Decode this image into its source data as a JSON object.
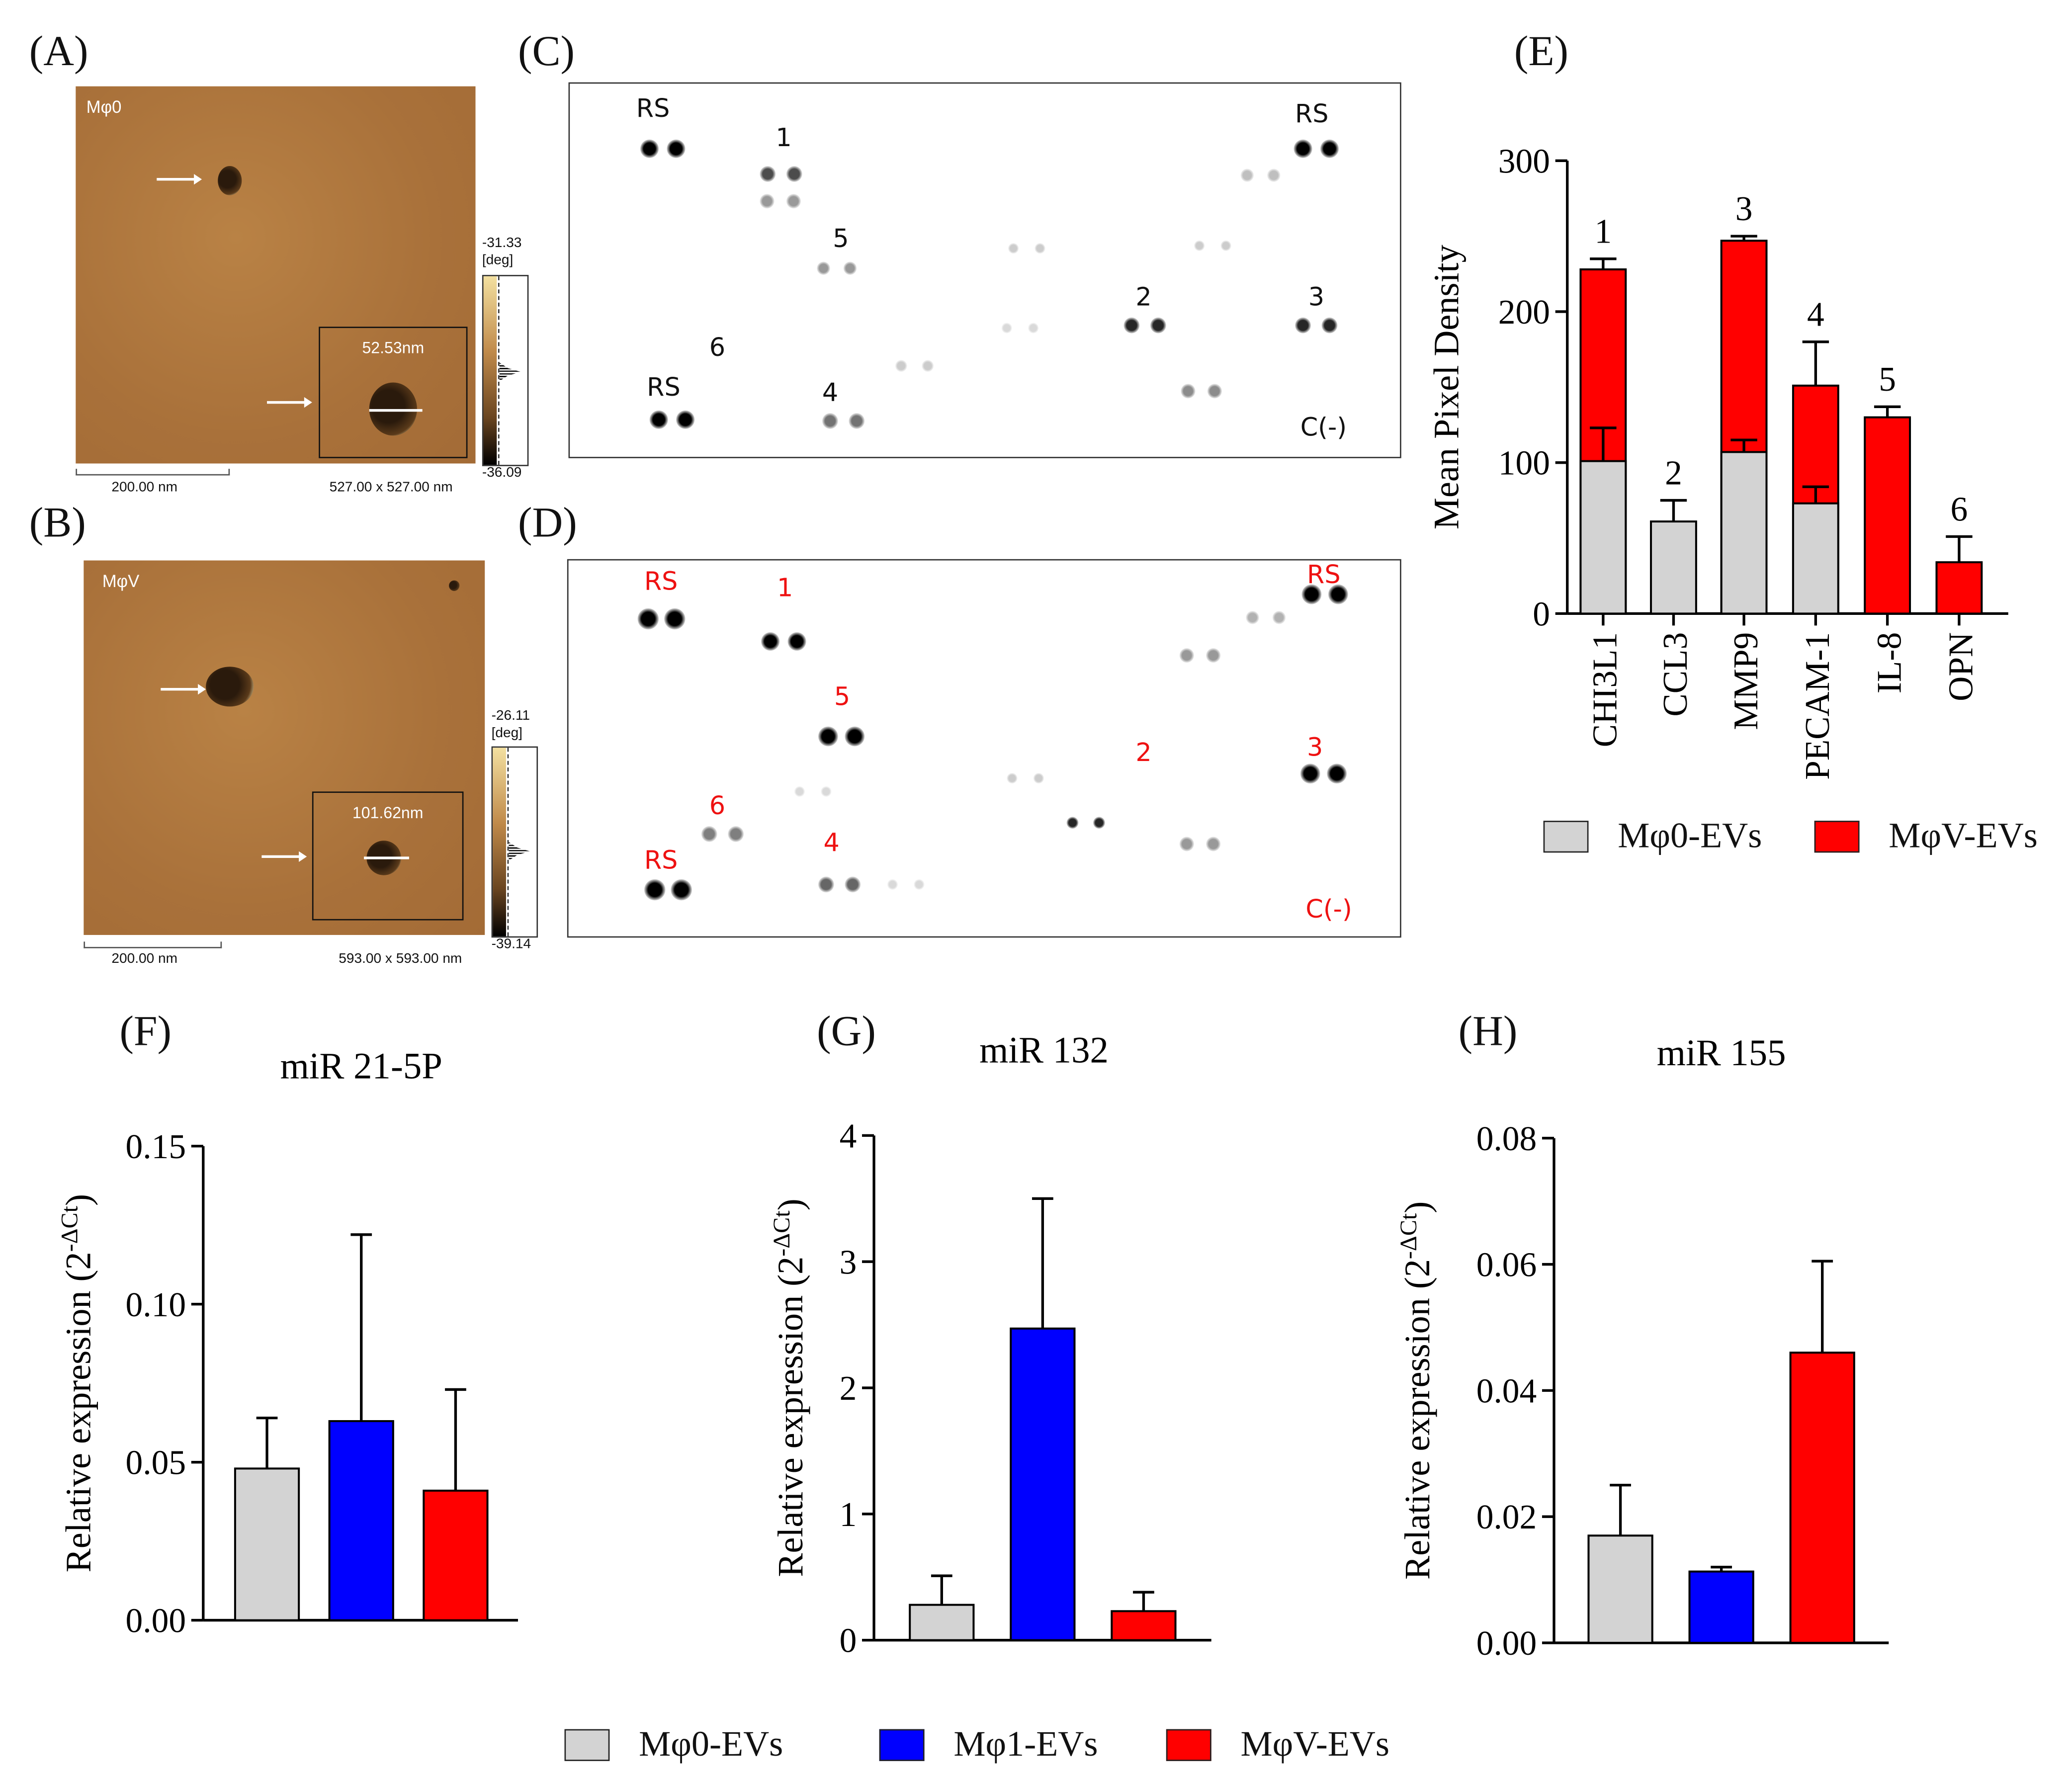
{
  "panels": {
    "A": "(A)",
    "B": "(B)",
    "C": "(C)",
    "D": "(D)",
    "E": "(E)",
    "F": "(F)",
    "G": "(G)",
    "H": "(H)"
  },
  "afm": [
    {
      "sample": "Mφ0",
      "inset_size": "52.53nm",
      "cbar_max": "-31.33",
      "cbar_unit": "[deg]",
      "cbar_min": "-36.09",
      "scale_bar": "200.00 nm",
      "scan_size": "527.00 x 527.00 nm"
    },
    {
      "sample": "MφV",
      "inset_size": "101.62nm",
      "cbar_max": "-26.11",
      "cbar_unit": "[deg]",
      "cbar_min": "-39.14",
      "scale_bar": "200.00 nm",
      "scan_size": "593.00 x 593.00 nm"
    }
  ],
  "blots": [
    {
      "color": "#111111",
      "labels": {
        "rs1": "RS",
        "rs2": "RS",
        "rs3": "RS",
        "n1": "1",
        "n2": "2",
        "n3": "3",
        "n4": "4",
        "n5": "5",
        "n6": "6",
        "neg": "C(-)"
      }
    },
    {
      "color": "#ee1111",
      "labels": {
        "rs1": "RS",
        "rs2": "RS",
        "rs3": "RS",
        "n1": "1",
        "n2": "2",
        "n3": "3",
        "n4": "4",
        "n5": "5",
        "n6": "6",
        "neg": "C(-)"
      }
    }
  ],
  "colors": {
    "m0": "#d3d3d3",
    "m1": "#0000ff",
    "mv": "#ff0000"
  },
  "chart_data": [
    {
      "type": "bar",
      "title": "",
      "ylabel": "Mean Pixel Density",
      "ylim": [
        0,
        300
      ],
      "yticks": [
        "0",
        "100",
        "200",
        "300"
      ],
      "categories": [
        "CHI3L1",
        "CCL3",
        "MMP9",
        "PECAM-1",
        "IL-8",
        "OPN"
      ],
      "bar_labels": [
        "1",
        "2",
        "3",
        "4",
        "5",
        "6"
      ],
      "series": [
        {
          "name": "Mφ0-EVs",
          "color": "#d3d3d3",
          "values": [
            101,
            61,
            107,
            73,
            null,
            null
          ],
          "err_top": [
            123,
            75,
            115,
            84,
            null,
            null
          ]
        },
        {
          "name": "MφV-EVs",
          "color": "#ff0000",
          "values": [
            228,
            null,
            247,
            151,
            130,
            34
          ],
          "err_top": [
            235,
            null,
            250,
            180,
            137,
            51
          ]
        }
      ],
      "legend": "bottom"
    },
    {
      "type": "bar",
      "title": "miR 21-5P",
      "ylabel": "Relative expression (2",
      "ylabel_sup": "-ΔCt",
      "ylabel_end": ")",
      "ylim": [
        0,
        0.15
      ],
      "yticks": [
        "0.00",
        "0.05",
        "0.10",
        "0.15"
      ],
      "categories": [
        "Mφ0-EVs",
        "Mφ1-EVs",
        "MφV-EVs"
      ],
      "values": [
        0.048,
        0.063,
        0.041
      ],
      "err_top": [
        0.064,
        0.122,
        0.073
      ]
    },
    {
      "type": "bar",
      "title": "miR 132",
      "ylabel": "Relative expression (2",
      "ylabel_sup": "-ΔCt",
      "ylabel_end": ")",
      "ylim": [
        0,
        4
      ],
      "yticks": [
        "0",
        "1",
        "2",
        "3",
        "4"
      ],
      "categories": [
        "Mφ0-EVs",
        "Mφ1-EVs",
        "MφV-EVs"
      ],
      "values": [
        0.28,
        2.47,
        0.23
      ],
      "err_top": [
        0.51,
        3.5,
        0.38
      ]
    },
    {
      "type": "bar",
      "title": "miR 155",
      "ylabel": "Relative expression (2",
      "ylabel_sup": "-ΔCt",
      "ylabel_end": ")",
      "ylim": [
        0,
        0.08
      ],
      "yticks": [
        "0.00",
        "0.02",
        "0.04",
        "0.06",
        "0.08"
      ],
      "categories": [
        "Mφ0-EVs",
        "Mφ1-EVs",
        "MφV-EVs"
      ],
      "values": [
        0.017,
        0.0113,
        0.046
      ],
      "err_top": [
        0.025,
        0.012,
        0.0605
      ]
    }
  ],
  "legend_bottom": [
    "Mφ0-EVs",
    "Mφ1-EVs",
    "MφV-EVs"
  ],
  "legend_e": [
    "Mφ0-EVs",
    "MφV-EVs"
  ]
}
